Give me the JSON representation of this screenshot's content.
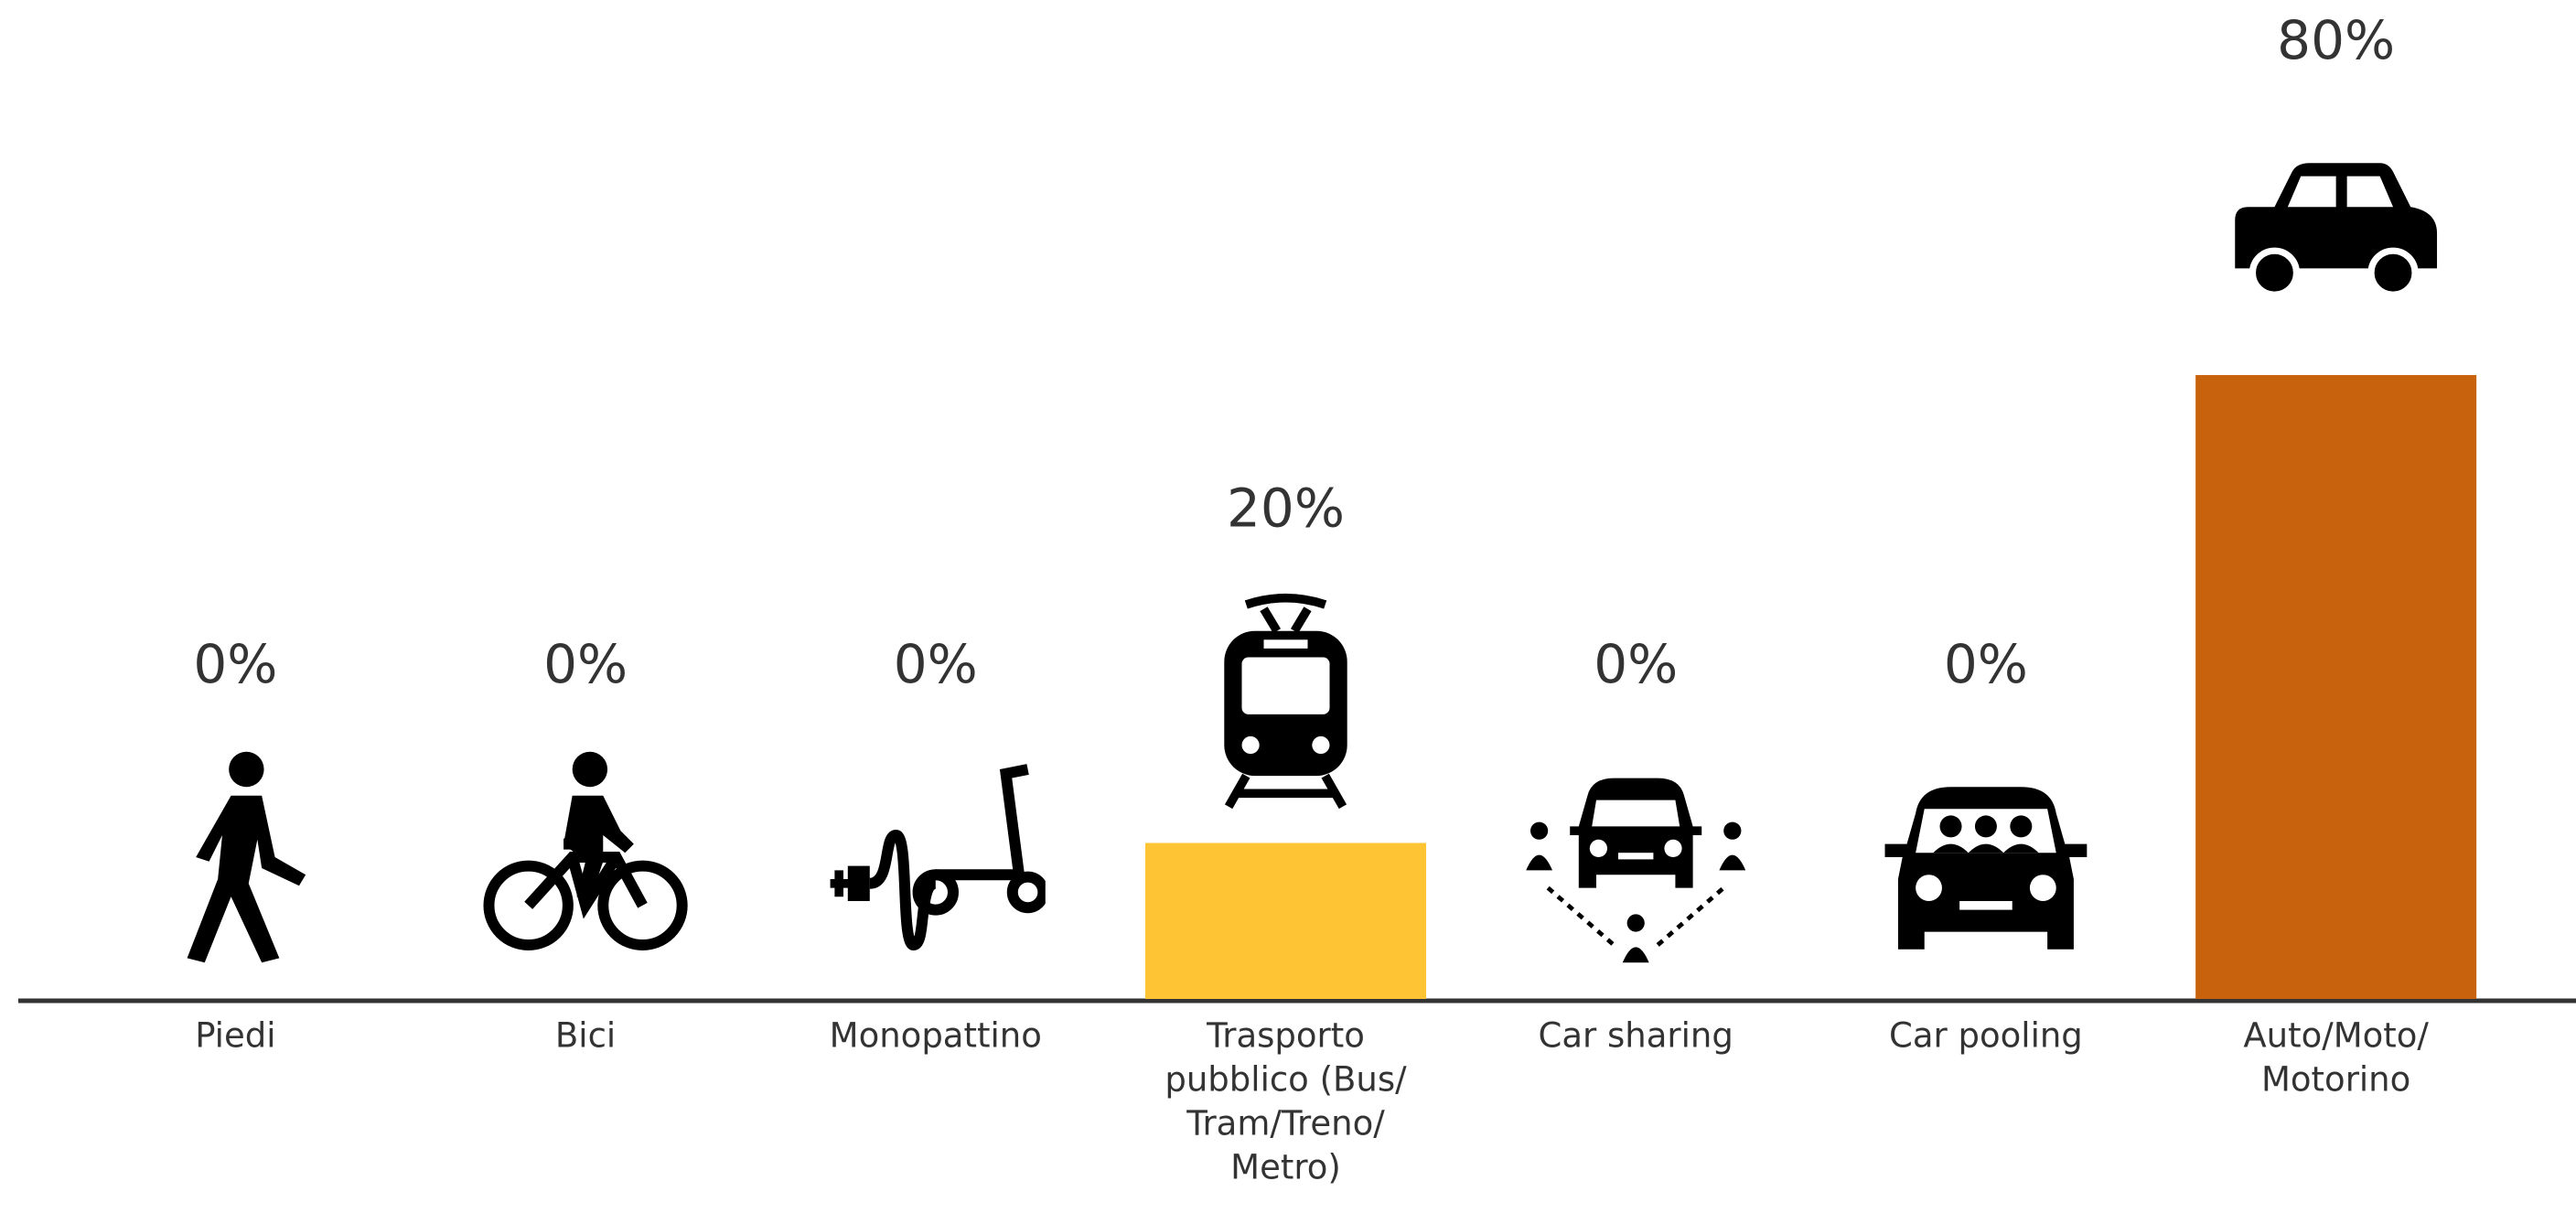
{
  "chart_data": {
    "type": "bar",
    "categories": [
      [
        "Piedi"
      ],
      [
        "Bici"
      ],
      [
        "Monopattino"
      ],
      [
        "Trasporto",
        "pubblico (Bus/",
        "Tram/Treno/",
        "Metro)"
      ],
      [
        "Car sharing"
      ],
      [
        "Car pooling"
      ],
      [
        "Auto/Moto/",
        "Motorino"
      ]
    ],
    "values": [
      0,
      0,
      0,
      20,
      0,
      0,
      80
    ],
    "value_labels": [
      "0%",
      "0%",
      "0%",
      "20%",
      "0%",
      "0%",
      "80%"
    ],
    "colors": [
      null,
      null,
      null,
      "#ffc433",
      null,
      null,
      "#c8620c"
    ]
  }
}
